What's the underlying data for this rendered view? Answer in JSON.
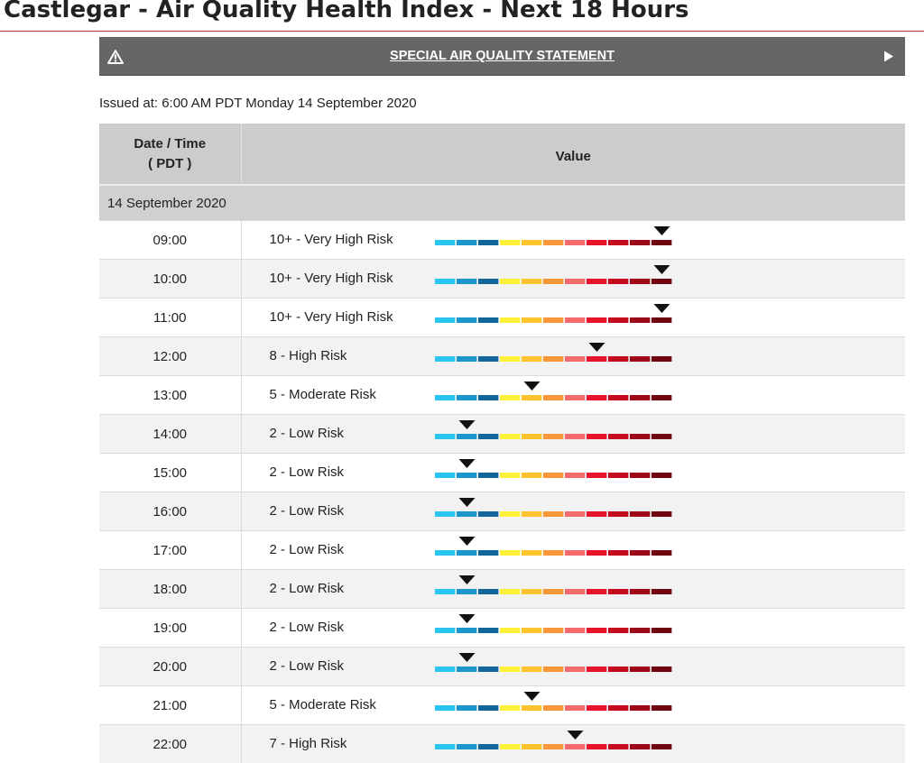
{
  "header": {
    "title": "Castlegar - Air Quality Health Index - Next 18 Hours"
  },
  "alert": {
    "label": "SPECIAL AIR QUALITY STATEMENT",
    "icon": "warning-triangle-icon",
    "arrow_icon": "play-arrow-icon"
  },
  "issued": "Issued at: 6:00 AM PDT Monday 14 September 2020",
  "table": {
    "col_time_line1": "Date / Time",
    "col_time_line2": "( PDT )",
    "col_value": "Value",
    "date_group": "14 September 2020",
    "scale_colors": [
      "#29c4ef",
      "#1d96cc",
      "#13679a",
      "#fdf13a",
      "#fcc32c",
      "#f8983a",
      "#f36b6b",
      "#e6142b",
      "#c5091e",
      "#9d0717",
      "#6e0510"
    ],
    "rows": [
      {
        "time": "09:00",
        "risk": "10+ - Very High Risk",
        "level": 11
      },
      {
        "time": "10:00",
        "risk": "10+ - Very High Risk",
        "level": 11
      },
      {
        "time": "11:00",
        "risk": "10+ - Very High Risk",
        "level": 11
      },
      {
        "time": "12:00",
        "risk": "8 - High Risk",
        "level": 8
      },
      {
        "time": "13:00",
        "risk": "5 - Moderate Risk",
        "level": 5
      },
      {
        "time": "14:00",
        "risk": "2 - Low Risk",
        "level": 2
      },
      {
        "time": "15:00",
        "risk": "2 - Low Risk",
        "level": 2
      },
      {
        "time": "16:00",
        "risk": "2 - Low Risk",
        "level": 2
      },
      {
        "time": "17:00",
        "risk": "2 - Low Risk",
        "level": 2
      },
      {
        "time": "18:00",
        "risk": "2 - Low Risk",
        "level": 2
      },
      {
        "time": "19:00",
        "risk": "2 - Low Risk",
        "level": 2
      },
      {
        "time": "20:00",
        "risk": "2 - Low Risk",
        "level": 2
      },
      {
        "time": "21:00",
        "risk": "5 - Moderate Risk",
        "level": 5
      },
      {
        "time": "22:00",
        "risk": "7 - High Risk",
        "level": 7
      }
    ]
  }
}
